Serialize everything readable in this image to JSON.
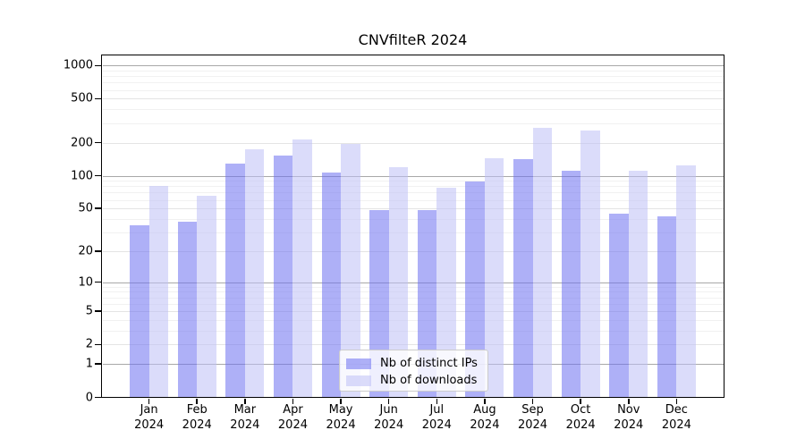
{
  "title": "CNVfilteR 2024",
  "chart_data": {
    "type": "bar",
    "title": "CNVfilteR 2024",
    "categories": [
      "Jan",
      "Feb",
      "Mar",
      "Apr",
      "May",
      "Jun",
      "Jul",
      "Aug",
      "Sep",
      "Oct",
      "Nov",
      "Dec"
    ],
    "year": "2024",
    "series": [
      {
        "name": "Nb of distinct IPs",
        "values": [
          35,
          38,
          130,
          152,
          107,
          48,
          48,
          89,
          142,
          111,
          45,
          42
        ],
        "color": "#6c70f0",
        "opacity": 0.55
      },
      {
        "name": "Nb of downloads",
        "values": [
          80,
          65,
          173,
          215,
          193,
          120,
          77,
          144,
          272,
          258,
          112,
          125
        ],
        "color": "#bec0f6",
        "opacity": 0.55
      }
    ],
    "xlabel": "",
    "ylabel": "",
    "y_scale": "log1p",
    "y_ticks": [
      0,
      1,
      2,
      5,
      10,
      20,
      50,
      100,
      200,
      500,
      1000
    ],
    "ylim": [
      0,
      1270
    ],
    "grid": true,
    "legend_position": "lower-center"
  },
  "colors": {
    "bar_ips": "rgba(108,112,240,0.55)",
    "bar_downloads": "rgba(190,192,246,0.55)",
    "grid_major": "#a8a8a8",
    "grid_mid": "#e4e4e4",
    "grid_minor": "#f1f1f1",
    "axis": "#000000"
  }
}
